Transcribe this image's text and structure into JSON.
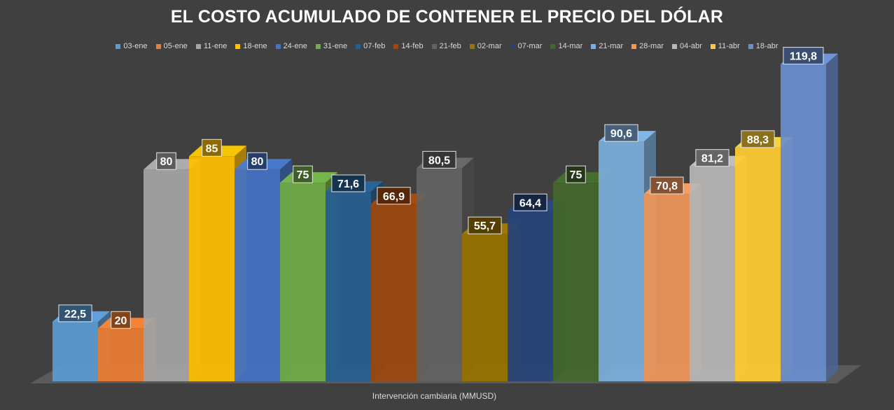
{
  "chart_data": {
    "type": "bar",
    "title": "EL COSTO ACUMULADO DE CONTENER EL PRECIO DEL DÓLAR",
    "xlabel": "Intervención cambiaria (MMUSD)",
    "ylabel": "",
    "ylim": [
      0,
      130
    ],
    "grid": false,
    "legend_position": "top",
    "categories": [
      "Intervención cambiaria (MMUSD)"
    ],
    "series": [
      {
        "name": "03-ene",
        "value": 22.5,
        "label": "22,5",
        "color": "#5b9bd5"
      },
      {
        "name": "05-ene",
        "value": 20,
        "label": "20",
        "color": "#ed7d31"
      },
      {
        "name": "11-ene",
        "value": 80,
        "label": "80",
        "color": "#a5a5a5"
      },
      {
        "name": "18-ene",
        "value": 85,
        "label": "85",
        "color": "#ffc000"
      },
      {
        "name": "24-ene",
        "value": 80,
        "label": "80",
        "color": "#4472c4"
      },
      {
        "name": "31-ene",
        "value": 75,
        "label": "75",
        "color": "#70ad47"
      },
      {
        "name": "07-feb",
        "value": 71.6,
        "label": "71,6",
        "color": "#255e91"
      },
      {
        "name": "14-feb",
        "value": 66.9,
        "label": "66,9",
        "color": "#9e480e"
      },
      {
        "name": "21-feb",
        "value": 80.5,
        "label": "80,5",
        "color": "#636363"
      },
      {
        "name": "02-mar",
        "value": 55.7,
        "label": "55,7",
        "color": "#997300"
      },
      {
        "name": "07-mar",
        "value": 64.4,
        "label": "64,4",
        "color": "#264478"
      },
      {
        "name": "14-mar",
        "value": 75,
        "label": "75",
        "color": "#43682b"
      },
      {
        "name": "21-mar",
        "value": 90.6,
        "label": "90,6",
        "color": "#7cafdd"
      },
      {
        "name": "28-mar",
        "value": 70.8,
        "label": "70,8",
        "color": "#f1975a"
      },
      {
        "name": "04-abr",
        "value": 81.2,
        "label": "81,2",
        "color": "#b7b7b7"
      },
      {
        "name": "11-abr",
        "value": 88.3,
        "label": "88,3",
        "color": "#ffcd33"
      },
      {
        "name": "18-abr",
        "value": 119.8,
        "label": "119,8",
        "color": "#698ed0"
      }
    ]
  }
}
